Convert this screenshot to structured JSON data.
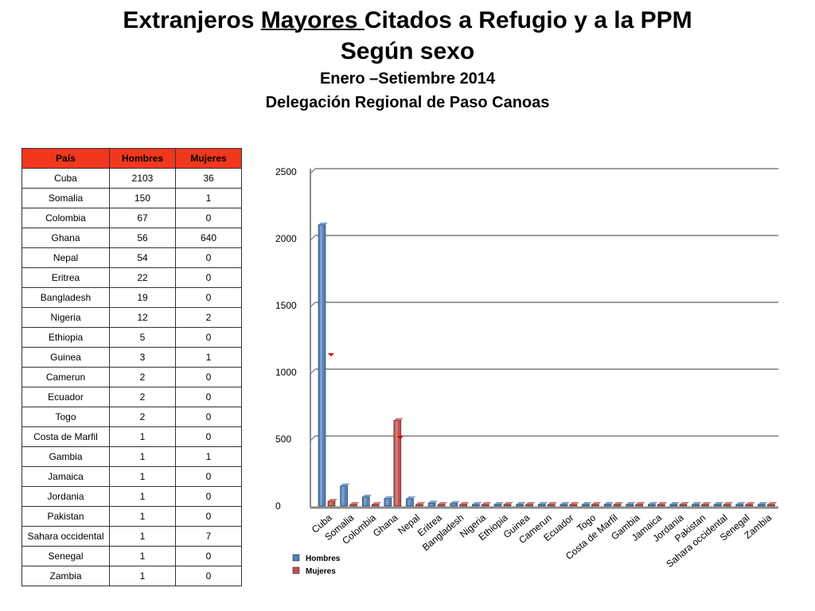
{
  "title": {
    "prefix": "Extranjeros ",
    "underlined": "Mayores ",
    "suffix": "Citados a Refugio y a la PPM",
    "line2": "Según sexo",
    "period": "Enero –Setiembre 2014",
    "office": "Delegación Regional de Paso Canoas"
  },
  "table": {
    "headers": [
      "País",
      "Hombres",
      "Mujeres"
    ],
    "rows": [
      [
        "Cuba",
        "2103",
        "36"
      ],
      [
        "Somalia",
        "150",
        "1"
      ],
      [
        "Colombia",
        "67",
        "0"
      ],
      [
        "Ghana",
        "56",
        "640"
      ],
      [
        "Nepal",
        "54",
        "0"
      ],
      [
        "Eritrea",
        "22",
        "0"
      ],
      [
        "Bangladesh",
        "19",
        "0"
      ],
      [
        "Nigeria",
        "12",
        "2"
      ],
      [
        "Ethiopia",
        "5",
        "0"
      ],
      [
        "Guinea",
        "3",
        "1"
      ],
      [
        "Camerun",
        "2",
        "0"
      ],
      [
        "Ecuador",
        "2",
        "0"
      ],
      [
        "Togo",
        "2",
        "0"
      ],
      [
        "Costa de Marfil",
        "1",
        "0"
      ],
      [
        "Gambia",
        "1",
        "1"
      ],
      [
        "Jamaica",
        "1",
        "0"
      ],
      [
        "Jordania",
        "1",
        "0"
      ],
      [
        "Pakistan",
        "1",
        "0"
      ],
      [
        "Sahara occidental",
        "1",
        "7"
      ],
      [
        "Senegal",
        "1",
        "0"
      ],
      [
        "Zambia",
        "1",
        "0"
      ]
    ]
  },
  "chart_data": {
    "type": "bar",
    "categories": [
      "Cuba",
      "Somalia",
      "Colombia",
      "Ghana",
      "Nepal",
      "Eritrea",
      "Bangladesh",
      "Nigeria",
      "Ethiopia",
      "Guinea",
      "Camerun",
      "Ecuador",
      "Togo",
      "Costa de Marfil",
      "Gambia",
      "Jamaica",
      "Jordania",
      "Pakistan",
      "Sahara occidental",
      "Senegal",
      "Zambia"
    ],
    "series": [
      {
        "name": "Hombres",
        "color": "#4f81bd",
        "values": [
          2103,
          150,
          67,
          56,
          54,
          22,
          19,
          12,
          5,
          3,
          2,
          2,
          2,
          1,
          1,
          1,
          1,
          1,
          1,
          1,
          1
        ]
      },
      {
        "name": "Mujeres",
        "color": "#c0504d",
        "values": [
          36,
          1,
          0,
          640,
          0,
          0,
          0,
          2,
          0,
          1,
          0,
          0,
          0,
          0,
          1,
          0,
          0,
          0,
          7,
          0,
          0
        ]
      }
    ],
    "y_ticks": [
      "0",
      "500",
      "1000",
      "1500",
      "2000",
      "2500"
    ],
    "ylim": [
      0,
      2500
    ],
    "grid": true,
    "legend": "bottom-left",
    "title": "",
    "xlabel": "",
    "ylabel": ""
  }
}
